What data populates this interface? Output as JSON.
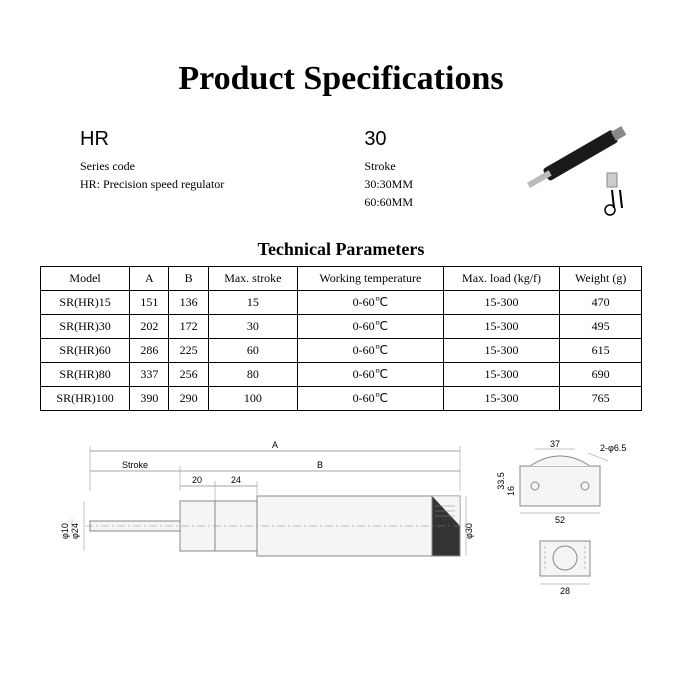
{
  "title": "Product Specifications",
  "header": {
    "left": {
      "code": "HR",
      "line1": "Series code",
      "line2": "HR: Precision speed regulator"
    },
    "right": {
      "code": "30",
      "line1": "Stroke",
      "line2": "30:30MM",
      "line3": "60:60MM"
    }
  },
  "section_title": "Technical Parameters",
  "table": {
    "columns": [
      "Model",
      "A",
      "B",
      "Max. stroke",
      "Working temperature",
      "Max. load (kg/f)",
      "Weight (g)"
    ],
    "rows": [
      [
        "SR(HR)15",
        "151",
        "136",
        "15",
        "0-60℃",
        "15-300",
        "470"
      ],
      [
        "SR(HR)30",
        "202",
        "172",
        "30",
        "0-60℃",
        "15-300",
        "495"
      ],
      [
        "SR(HR)60",
        "286",
        "225",
        "60",
        "0-60℃",
        "15-300",
        "615"
      ],
      [
        "SR(HR)80",
        "337",
        "256",
        "80",
        "0-60℃",
        "15-300",
        "690"
      ],
      [
        "SR(HR)100",
        "390",
        "290",
        "100",
        "0-60℃",
        "15-300",
        "765"
      ]
    ]
  },
  "diagram": {
    "main": {
      "A": "A",
      "B": "B",
      "Stroke": "Stroke",
      "d1": "20",
      "d2": "24",
      "dia24": "φ24",
      "dia10": "φ10",
      "dia30": "φ30"
    },
    "bracket": {
      "w": "37",
      "holes": "2-φ6.5",
      "h1": "16",
      "h2": "33.5",
      "w2": "52",
      "w3": "28"
    }
  },
  "colors": {
    "line": "#888",
    "fill": "#f5f5f5"
  }
}
